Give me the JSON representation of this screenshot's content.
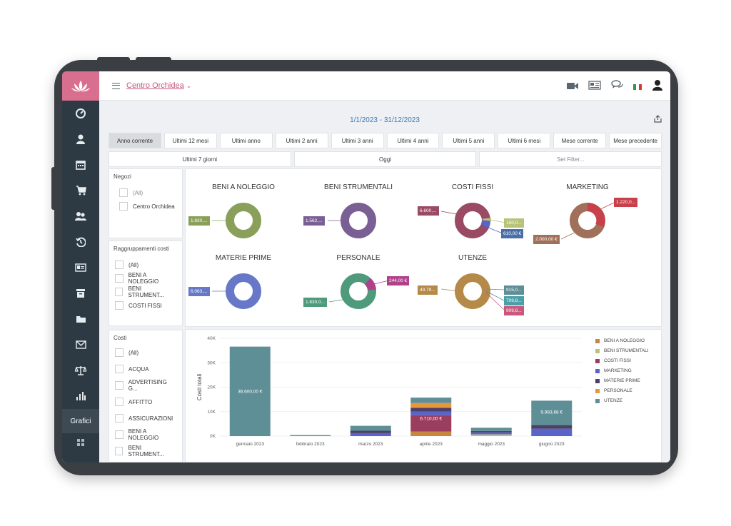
{
  "app": {
    "store_name": "Centro Orchidea"
  },
  "sidebar": {
    "active_item": "Grafici"
  },
  "header": {
    "date_range": "1/1/2023 - 31/12/2023"
  },
  "filters": [
    "Anno corrente",
    "Ultimi 12 mesi",
    "Ultimi anno",
    "Ultimi 2 anni",
    "Ultimi 3 anni",
    "Ultimi 4 anni",
    "Ultimi 5 anni",
    "Ultimi 6 mesi",
    "Mese corrente",
    "Mese precedente"
  ],
  "filters_row2": {
    "last7": "Ultimi 7 giorni",
    "today": "Oggi",
    "set_filter": "Set Filter..."
  },
  "negozi": {
    "title": "Negozi",
    "items": [
      "(All)",
      "Centro Orchidea"
    ]
  },
  "raggruppamenti": {
    "title": "Raggruppamenti costi",
    "items": [
      "(All)",
      "BENI A NOLEGGIO",
      "BENI STRUMENT...",
      "COSTI FISSI"
    ]
  },
  "costi": {
    "title": "Costi",
    "items": [
      "(All)",
      "ACQUA",
      "ADVERTISING G...",
      "AFFITTO",
      "ASSICURAZIONI",
      "BENI A NOLEGGIO",
      "BENI STRUMENT..."
    ]
  },
  "donuts": [
    {
      "title": "BENI A NOLEGGIO",
      "color": "#8aa05a",
      "labels": [
        "1.830,..."
      ]
    },
    {
      "title": "BENI STRUMENTALI",
      "color": "#7a5f95",
      "labels": [
        "1.562,..."
      ]
    },
    {
      "title": "COSTI FISSI",
      "color": "#9a4a62",
      "labels": [
        "6.600,...",
        "150,0...",
        "610,00 €"
      ]
    },
    {
      "title": "MARKETING",
      "color": "#a0705a",
      "labels": [
        "1.220,0...",
        "2.000,00 €"
      ]
    },
    {
      "title": "MATERIE PRIME",
      "color": "#6878c8",
      "labels": [
        "6.063,..."
      ]
    },
    {
      "title": "PERSONALE",
      "color": "#4f9a7a",
      "labels": [
        "244,00 €",
        "1.830,0..."
      ]
    },
    {
      "title": "UTENZE",
      "color": "#b58a48",
      "labels": [
        "49.79...",
        "915,0...",
        "709,8...",
        "909,8..."
      ]
    }
  ],
  "chart_data": {
    "type": "bar",
    "categories": [
      "gennaio 2023",
      "febbraio 2023",
      "marzo 2023",
      "aprile 2023",
      "maggio 2023",
      "giugno 2023"
    ],
    "ylabel": "Costi totali",
    "ylim": [
      0,
      40000
    ],
    "yticks": [
      "0K",
      "10K",
      "20K",
      "30K",
      "40K"
    ],
    "series": [
      {
        "name": "BENI A NOLEGGIO",
        "color": "#c8873e",
        "values": [
          0,
          0,
          0,
          1830,
          0,
          0
        ]
      },
      {
        "name": "BENI STRUMENTALI",
        "color": "#b8c27a",
        "values": [
          0,
          0,
          0,
          0,
          700,
          0
        ]
      },
      {
        "name": "COSTI FISSI",
        "color": "#9b3d5e",
        "values": [
          0,
          0,
          0,
          6710,
          0,
          0
        ]
      },
      {
        "name": "MARKETING",
        "color": "#5a63c8",
        "values": [
          0,
          0,
          1200,
          1500,
          800,
          3000
        ]
      },
      {
        "name": "MATERIE PRIME",
        "color": "#4a4068",
        "values": [
          0,
          0,
          1000,
          1500,
          600,
          1500
        ]
      },
      {
        "name": "PERSONALE",
        "color": "#e8963a",
        "values": [
          0,
          0,
          0,
          2000,
          0,
          0
        ]
      },
      {
        "name": "UTENZE",
        "color": "#5f8f96",
        "values": [
          36600,
          400,
          2000,
          2200,
          1300,
          9983.68
        ]
      }
    ],
    "data_labels": {
      "gennaio 2023": "36.600,00 €",
      "aprile 2023": "6.710,00 €",
      "giugno 2023": "9.983,68 €"
    },
    "legend_position": "right"
  }
}
